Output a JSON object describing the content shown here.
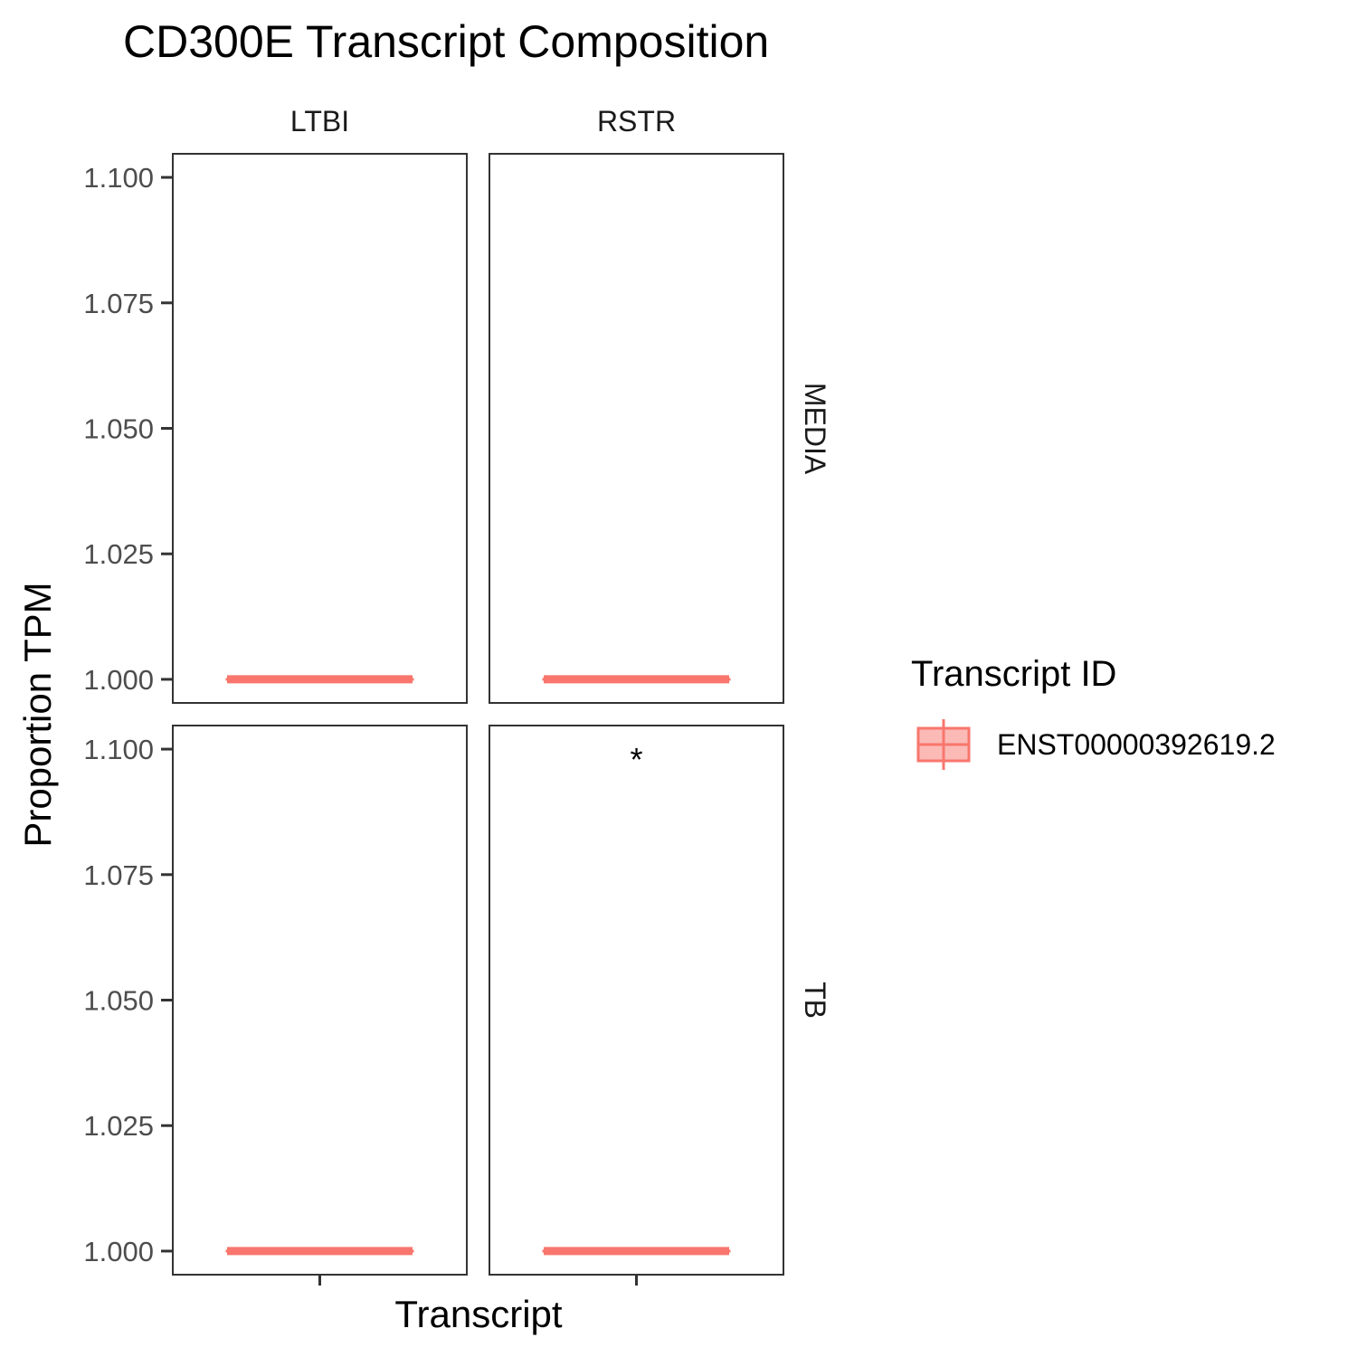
{
  "chart_data": {
    "type": "boxplot",
    "title": "CD300E Transcript Composition",
    "xlabel": "Transcript",
    "ylabel": "Proportion TPM",
    "ylim": [
      0.9953,
      1.1047
    ],
    "y_ticks": [
      "1.000",
      "1.025",
      "1.050",
      "1.075",
      "1.100"
    ],
    "y_tick_values": [
      1.0,
      1.025,
      1.05,
      1.075,
      1.1
    ],
    "columns": [
      "LTBI",
      "RSTR"
    ],
    "rows": [
      "MEDIA",
      "TB"
    ],
    "grid": false,
    "legend": {
      "title": "Transcript ID",
      "position": "right",
      "entries": [
        "ENST00000392619.2"
      ]
    },
    "series": [
      {
        "name": "ENST00000392619.2",
        "color": "#F8766D"
      }
    ],
    "panels": [
      {
        "column": "LTBI",
        "row": "MEDIA",
        "median": 1.0,
        "q1": 1.0,
        "q3": 1.0,
        "annotation": ""
      },
      {
        "column": "RSTR",
        "row": "MEDIA",
        "median": 1.0,
        "q1": 1.0,
        "q3": 1.0,
        "annotation": ""
      },
      {
        "column": "LTBI",
        "row": "TB",
        "median": 1.0,
        "q1": 1.0,
        "q3": 1.0,
        "annotation": ""
      },
      {
        "column": "RSTR",
        "row": "TB",
        "median": 1.0,
        "q1": 1.0,
        "q3": 1.0,
        "annotation": "*",
        "annotation_y": 1.1
      }
    ]
  }
}
